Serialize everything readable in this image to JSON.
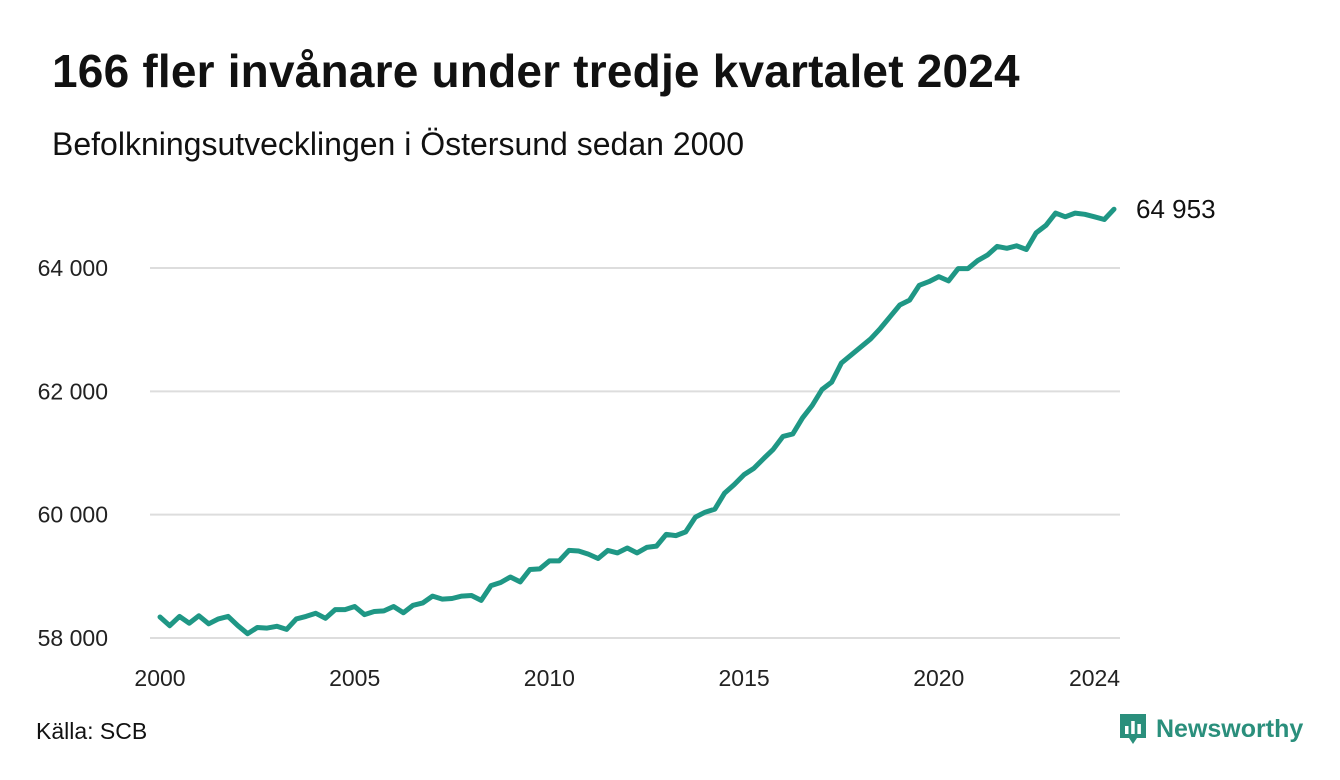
{
  "header": {
    "title": "166 fler invånare under tredje kvartalet 2024",
    "subtitle": "Befolkningsutvecklingen i Östersund sedan 2000"
  },
  "footer": {
    "source": "Källa: SCB",
    "brand": "Newsworthy"
  },
  "colors": {
    "line": "#1f9785",
    "grid": "#dddddd",
    "text": "#111111",
    "brand": "#2a8f7c"
  },
  "icons": {
    "brand": "newsworthy-logo-icon"
  },
  "chart_data": {
    "type": "line",
    "title": "166 fler invånare under tredje kvartalet 2024",
    "subtitle": "Befolkningsutvecklingen i Östersund sedan 2000",
    "xlabel": "",
    "ylabel": "",
    "x_ticks": [
      "2000",
      "2005",
      "2010",
      "2015",
      "2020",
      "2024"
    ],
    "y_ticks": [
      "58 000",
      "60 000",
      "62 000",
      "64 000"
    ],
    "ylim": [
      58000,
      65000
    ],
    "xlim": [
      2000.0,
      2024.5
    ],
    "grid": "horizontal",
    "legend": "none",
    "end_label": "64 953",
    "series": [
      {
        "x": [
          2000.0,
          2000.25,
          2000.5,
          2000.75,
          2001.0,
          2001.25,
          2001.5,
          2001.75,
          2002.0,
          2002.25,
          2002.5,
          2002.75,
          2003.0,
          2003.25,
          2003.5,
          2003.75,
          2004.0,
          2004.25,
          2004.5,
          2004.75,
          2005.0,
          2005.25,
          2005.5,
          2005.75,
          2006.0,
          2006.25,
          2006.5,
          2006.75,
          2007.0,
          2007.25,
          2007.5,
          2007.75,
          2008.0,
          2008.25,
          2008.5,
          2008.75,
          2009.0,
          2009.25,
          2009.5,
          2009.75,
          2010.0,
          2010.25,
          2010.5,
          2010.75,
          2011.0,
          2011.25,
          2011.5,
          2011.75,
          2012.0,
          2012.25,
          2012.5,
          2012.75,
          2013.0,
          2013.25,
          2013.5,
          2013.75,
          2014.0,
          2014.25,
          2014.5,
          2014.75,
          2015.0,
          2015.25,
          2015.5,
          2015.75,
          2016.0,
          2016.25,
          2016.5,
          2016.75,
          2017.0,
          2017.25,
          2017.5,
          2017.75,
          2018.0,
          2018.25,
          2018.5,
          2018.75,
          2019.0,
          2019.25,
          2019.5,
          2019.75,
          2020.0,
          2020.25,
          2020.5,
          2020.75,
          2021.0,
          2021.25,
          2021.5,
          2021.75,
          2022.0,
          2022.25,
          2022.5,
          2022.75,
          2023.0,
          2023.25,
          2023.5,
          2023.75,
          2024.0,
          2024.25,
          2024.5
        ],
        "values": [
          58340,
          58200,
          58350,
          58240,
          58360,
          58230,
          58310,
          58350,
          58200,
          58070,
          58170,
          58160,
          58190,
          58140,
          58310,
          58350,
          58400,
          58320,
          58460,
          58460,
          58510,
          58380,
          58430,
          58440,
          58510,
          58410,
          58530,
          58570,
          58680,
          58630,
          58640,
          58680,
          58690,
          58610,
          58850,
          58900,
          58990,
          58910,
          59110,
          59120,
          59250,
          59250,
          59420,
          59410,
          59360,
          59290,
          59420,
          59380,
          59460,
          59380,
          59470,
          59490,
          59680,
          59660,
          59720,
          59960,
          60040,
          60090,
          60350,
          60490,
          60650,
          60750,
          60910,
          61060,
          61270,
          61310,
          61570,
          61770,
          62030,
          62150,
          62460,
          62590,
          62720,
          62850,
          63020,
          63210,
          63400,
          63480,
          63720,
          63780,
          63860,
          63790,
          63990,
          63990,
          64120,
          64210,
          64350,
          64320,
          64360,
          64300,
          64570,
          64690,
          64890,
          64830,
          64890,
          64870,
          64830,
          64787,
          64953
        ]
      }
    ]
  }
}
